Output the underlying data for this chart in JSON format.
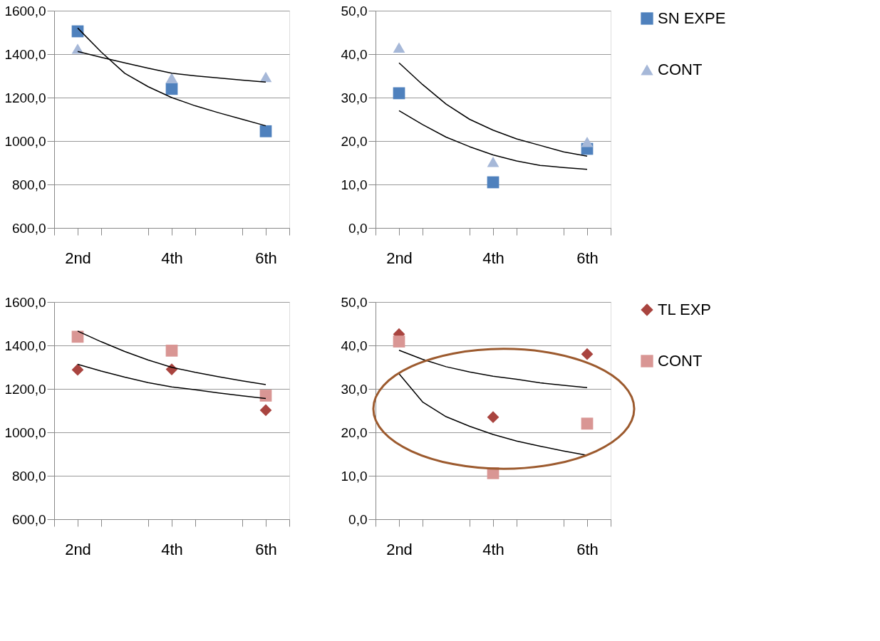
{
  "chart_data": [
    {
      "type": "scatter",
      "xlim": [
        1.5,
        6.5
      ],
      "xticks": [
        {
          "value": 1.5,
          "label": null
        },
        {
          "value": 2,
          "label": "2nd"
        },
        {
          "value": 2.5,
          "label": null
        },
        {
          "value": 3.5,
          "label": null
        },
        {
          "value": 4,
          "label": "4th"
        },
        {
          "value": 4.5,
          "label": null
        },
        {
          "value": 5.5,
          "label": null
        },
        {
          "value": 6,
          "label": "6th"
        },
        {
          "value": 6.5,
          "label": null
        }
      ],
      "ylim": [
        600,
        1600
      ],
      "yticks": [
        {
          "value": 600,
          "label": "600,0"
        },
        {
          "value": 800,
          "label": "800,0"
        },
        {
          "value": 1000,
          "label": "1000,0"
        },
        {
          "value": 1200,
          "label": "1200,0"
        },
        {
          "value": 1400,
          "label": "1400,0"
        },
        {
          "value": 1600,
          "label": "1600,0"
        }
      ],
      "grid": "y",
      "legend": false,
      "series": [
        {
          "marker": "square",
          "color": "#4f81bd",
          "x": [
            2,
            4,
            6
          ],
          "values": [
            1505,
            1240,
            1045
          ]
        },
        {
          "marker": "triangle",
          "color": "#a6b8d8",
          "x": [
            2,
            4,
            6
          ],
          "values": [
            1425,
            1290,
            1295
          ]
        },
        {
          "type": "line",
          "color": "#000000",
          "x": [
            2,
            2.5,
            3,
            3.5,
            4,
            4.5,
            5,
            5.5,
            6
          ],
          "values": [
            1520,
            1410,
            1312,
            1250,
            1200,
            1162,
            1130,
            1100,
            1070
          ]
        },
        {
          "type": "line",
          "color": "#000000",
          "x": [
            2,
            2.5,
            3,
            3.5,
            4,
            4.5,
            5,
            5.5,
            6
          ],
          "values": [
            1412,
            1385,
            1360,
            1335,
            1312,
            1300,
            1290,
            1280,
            1271
          ]
        }
      ]
    },
    {
      "type": "scatter",
      "xlim": [
        1.5,
        6.5
      ],
      "xticks": [
        {
          "value": 1.5,
          "label": null
        },
        {
          "value": 2,
          "label": "2nd"
        },
        {
          "value": 2.5,
          "label": null
        },
        {
          "value": 3.5,
          "label": null
        },
        {
          "value": 4,
          "label": "4th"
        },
        {
          "value": 4.5,
          "label": null
        },
        {
          "value": 5.5,
          "label": null
        },
        {
          "value": 6,
          "label": "6th"
        },
        {
          "value": 6.5,
          "label": null
        }
      ],
      "ylim": [
        0,
        50
      ],
      "yticks": [
        {
          "value": 0,
          "label": "0,0"
        },
        {
          "value": 10,
          "label": "10,0"
        },
        {
          "value": 20,
          "label": "20,0"
        },
        {
          "value": 30,
          "label": "30,0"
        },
        {
          "value": 40,
          "label": "40,0"
        },
        {
          "value": 50,
          "label": "50,0"
        }
      ],
      "grid": "y",
      "legend": "right",
      "series": [
        {
          "name": "SN EXPE",
          "marker": "square",
          "color": "#4f81bd",
          "x": [
            2,
            4,
            6
          ],
          "values": [
            31,
            10.5,
            18.2
          ]
        },
        {
          "name": "CONT",
          "marker": "triangle",
          "color": "#a6b8d8",
          "x": [
            2,
            4,
            6
          ],
          "values": [
            41.5,
            15.2,
            19.8
          ]
        },
        {
          "type": "line",
          "color": "#000000",
          "x": [
            2,
            2.5,
            3,
            3.5,
            4,
            4.5,
            5,
            5.5,
            6
          ],
          "values": [
            38,
            33,
            28.5,
            25,
            22.5,
            20.5,
            19,
            17.5,
            16.5
          ]
        },
        {
          "type": "line",
          "color": "#000000",
          "x": [
            2,
            2.5,
            3,
            3.5,
            4,
            4.5,
            5,
            5.5,
            6
          ],
          "values": [
            27,
            23.8,
            20.9,
            18.7,
            16.8,
            15.4,
            14.4,
            13.9,
            13.5
          ]
        }
      ]
    },
    {
      "type": "scatter",
      "xlim": [
        1.5,
        6.5
      ],
      "xticks": [
        {
          "value": 1.5,
          "label": null
        },
        {
          "value": 2,
          "label": "2nd"
        },
        {
          "value": 2.5,
          "label": null
        },
        {
          "value": 3.5,
          "label": null
        },
        {
          "value": 4,
          "label": "4th"
        },
        {
          "value": 4.5,
          "label": null
        },
        {
          "value": 5.5,
          "label": null
        },
        {
          "value": 6,
          "label": "6th"
        },
        {
          "value": 6.5,
          "label": null
        }
      ],
      "ylim": [
        600,
        1600
      ],
      "yticks": [
        {
          "value": 600,
          "label": "600,0"
        },
        {
          "value": 800,
          "label": "800,0"
        },
        {
          "value": 1000,
          "label": "1000,0"
        },
        {
          "value": 1200,
          "label": "1200,0"
        },
        {
          "value": 1400,
          "label": "1400,0"
        },
        {
          "value": 1600,
          "label": "1600,0"
        }
      ],
      "grid": "y",
      "legend": false,
      "series": [
        {
          "marker": "diamond",
          "color": "#a9443f",
          "x": [
            2,
            4,
            6
          ],
          "values": [
            1288,
            1290,
            1102
          ]
        },
        {
          "marker": "square",
          "color": "#d99694",
          "x": [
            2,
            4,
            6
          ],
          "values": [
            1440,
            1376,
            1169
          ]
        },
        {
          "type": "line",
          "color": "#000000",
          "x": [
            2,
            2.5,
            3,
            3.5,
            4,
            4.5,
            5,
            5.5,
            6
          ],
          "values": [
            1466,
            1417,
            1372,
            1333,
            1299,
            1276,
            1256,
            1237,
            1220
          ]
        },
        {
          "type": "line",
          "color": "#000000",
          "x": [
            2,
            2.5,
            3,
            3.5,
            4,
            4.5,
            5,
            5.5,
            6
          ],
          "values": [
            1313,
            1282,
            1254,
            1229,
            1209,
            1196,
            1181,
            1168,
            1156
          ]
        }
      ]
    },
    {
      "type": "scatter",
      "xlim": [
        1.5,
        6.5
      ],
      "xticks": [
        {
          "value": 1.5,
          "label": null
        },
        {
          "value": 2,
          "label": "2nd"
        },
        {
          "value": 2.5,
          "label": null
        },
        {
          "value": 3.5,
          "label": null
        },
        {
          "value": 4,
          "label": "4th"
        },
        {
          "value": 4.5,
          "label": null
        },
        {
          "value": 5.5,
          "label": null
        },
        {
          "value": 6,
          "label": "6th"
        },
        {
          "value": 6.5,
          "label": null
        }
      ],
      "ylim": [
        0,
        50
      ],
      "yticks": [
        {
          "value": 0,
          "label": "0,0"
        },
        {
          "value": 10,
          "label": "10,0"
        },
        {
          "value": 20,
          "label": "20,0"
        },
        {
          "value": 30,
          "label": "30,0"
        },
        {
          "value": 40,
          "label": "40,0"
        },
        {
          "value": 50,
          "label": "50,0"
        }
      ],
      "grid": "y",
      "legend": "right",
      "series": [
        {
          "name": "TL EXP",
          "marker": "diamond",
          "color": "#a9443f",
          "x": [
            2,
            4,
            6
          ],
          "values": [
            42.6,
            23.5,
            38
          ]
        },
        {
          "name": "CONT",
          "marker": "square",
          "color": "#d99694",
          "x": [
            2,
            4,
            6
          ],
          "values": [
            40.9,
            10.6,
            22
          ]
        },
        {
          "type": "line",
          "color": "#000000",
          "x": [
            2,
            2.5,
            3,
            3.5,
            4,
            4.5,
            5,
            5.5,
            6
          ],
          "values": [
            38.9,
            36.8,
            35.1,
            33.9,
            32.9,
            32.2,
            31.4,
            30.8,
            30.3
          ]
        },
        {
          "type": "line",
          "color": "#000000",
          "x": [
            2,
            2.5,
            3,
            3.5,
            4,
            4.5,
            5,
            5.5,
            6
          ],
          "values": [
            33.5,
            27,
            23.6,
            21.4,
            19.5,
            18,
            16.8,
            15.7,
            14.7
          ]
        }
      ]
    }
  ]
}
